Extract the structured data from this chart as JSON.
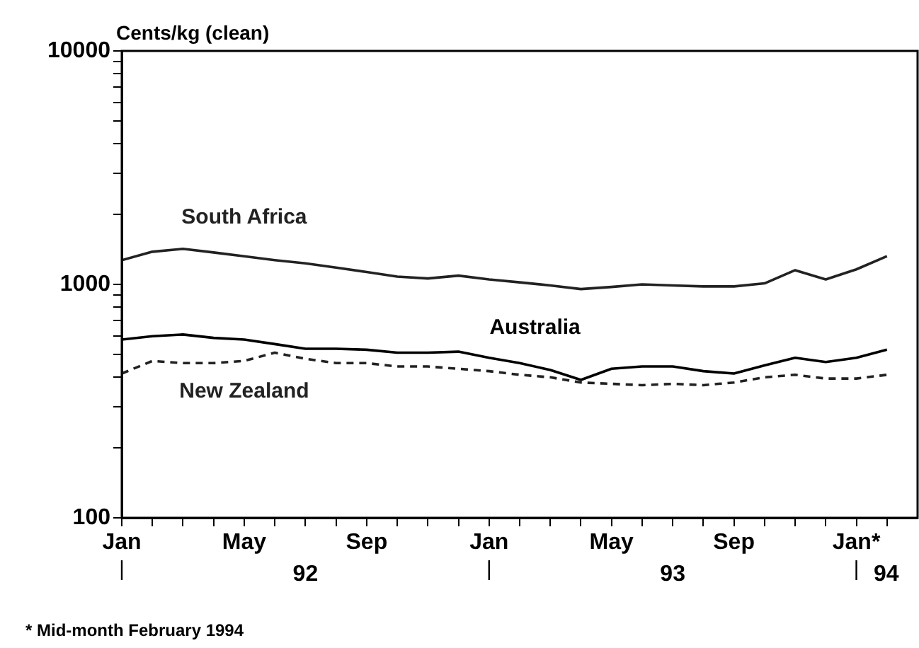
{
  "chart_data": {
    "type": "line",
    "ylabel": "Cents/kg (clean)",
    "log": "y",
    "grid": false,
    "legend": false,
    "marker": "none",
    "x": [
      "1992-01",
      "1992-02",
      "1992-03",
      "1992-04",
      "1992-05",
      "1992-06",
      "1992-07",
      "1992-08",
      "1992-09",
      "1992-10",
      "1992-11",
      "1992-12",
      "1993-01",
      "1993-02",
      "1993-03",
      "1993-04",
      "1993-05",
      "1993-06",
      "1993-07",
      "1993-08",
      "1993-09",
      "1993-10",
      "1993-11",
      "1993-12",
      "1994-01",
      "1994-02"
    ],
    "series": [
      {
        "name": "South Africa",
        "color": "#222222",
        "line_style": "solid",
        "values": [
          1270,
          1380,
          1420,
          1370,
          1320,
          1270,
          1230,
          1180,
          1130,
          1080,
          1060,
          1090,
          1050,
          1020,
          990,
          955,
          975,
          1000,
          990,
          980,
          980,
          1010,
          1150,
          1050,
          1160,
          1320
        ]
      },
      {
        "name": "Australia",
        "color": "#000000",
        "line_style": "solid",
        "values": [
          580,
          600,
          610,
          590,
          580,
          555,
          530,
          530,
          525,
          510,
          510,
          515,
          485,
          460,
          430,
          390,
          435,
          445,
          445,
          425,
          415,
          450,
          485,
          465,
          485,
          525
        ]
      },
      {
        "name": "New Zealand",
        "color": "#222222",
        "line_style": "dashed",
        "values": [
          415,
          470,
          460,
          460,
          470,
          510,
          480,
          460,
          460,
          445,
          445,
          435,
          425,
          410,
          400,
          380,
          375,
          370,
          375,
          370,
          380,
          400,
          410,
          395,
          395,
          410
        ]
      }
    ],
    "xlim": [
      "1992-01",
      "1994-03"
    ],
    "xticks": [
      {
        "value": "1992-01",
        "label": "Jan"
      },
      {
        "value": "1992-02",
        "label": null
      },
      {
        "value": "1992-03",
        "label": null
      },
      {
        "value": "1992-04",
        "label": null
      },
      {
        "value": "1992-05",
        "label": "May"
      },
      {
        "value": "1992-06",
        "label": null
      },
      {
        "value": "1992-07",
        "label": null
      },
      {
        "value": "1992-08",
        "label": null
      },
      {
        "value": "1992-09",
        "label": "Sep"
      },
      {
        "value": "1992-10",
        "label": null
      },
      {
        "value": "1992-11",
        "label": null
      },
      {
        "value": "1992-12",
        "label": null
      },
      {
        "value": "1993-01",
        "label": "Jan"
      },
      {
        "value": "1993-02",
        "label": null
      },
      {
        "value": "1993-03",
        "label": null
      },
      {
        "value": "1993-04",
        "label": null
      },
      {
        "value": "1993-05",
        "label": "May"
      },
      {
        "value": "1993-06",
        "label": null
      },
      {
        "value": "1993-07",
        "label": null
      },
      {
        "value": "1993-08",
        "label": null
      },
      {
        "value": "1993-09",
        "label": "Sep"
      },
      {
        "value": "1993-10",
        "label": null
      },
      {
        "value": "1993-11",
        "label": null
      },
      {
        "value": "1993-12",
        "label": null
      },
      {
        "value": "1994-01",
        "label": "Jan*"
      },
      {
        "value": "1994-02",
        "label": null
      }
    ],
    "ylim": [
      100,
      10000
    ],
    "yticks": [
      100,
      {
        "value": 200,
        "label": null
      },
      {
        "value": 300,
        "label": null
      },
      {
        "value": 400,
        "label": null
      },
      {
        "value": 500,
        "label": null
      },
      {
        "value": 600,
        "label": null
      },
      {
        "value": 700,
        "label": null
      },
      {
        "value": 800,
        "label": null
      },
      {
        "value": 900,
        "label": null
      },
      1000,
      {
        "value": 2000,
        "label": null
      },
      {
        "value": 3000,
        "label": null
      },
      {
        "value": 4000,
        "label": null
      },
      {
        "value": 5000,
        "label": null
      },
      {
        "value": 6000,
        "label": null
      },
      {
        "value": 7000,
        "label": null
      },
      {
        "value": 8000,
        "label": null
      },
      {
        "value": 9000,
        "label": null
      },
      10000
    ],
    "annotations": [
      "92",
      "93",
      "94",
      "* Mid-month February 1994"
    ]
  }
}
